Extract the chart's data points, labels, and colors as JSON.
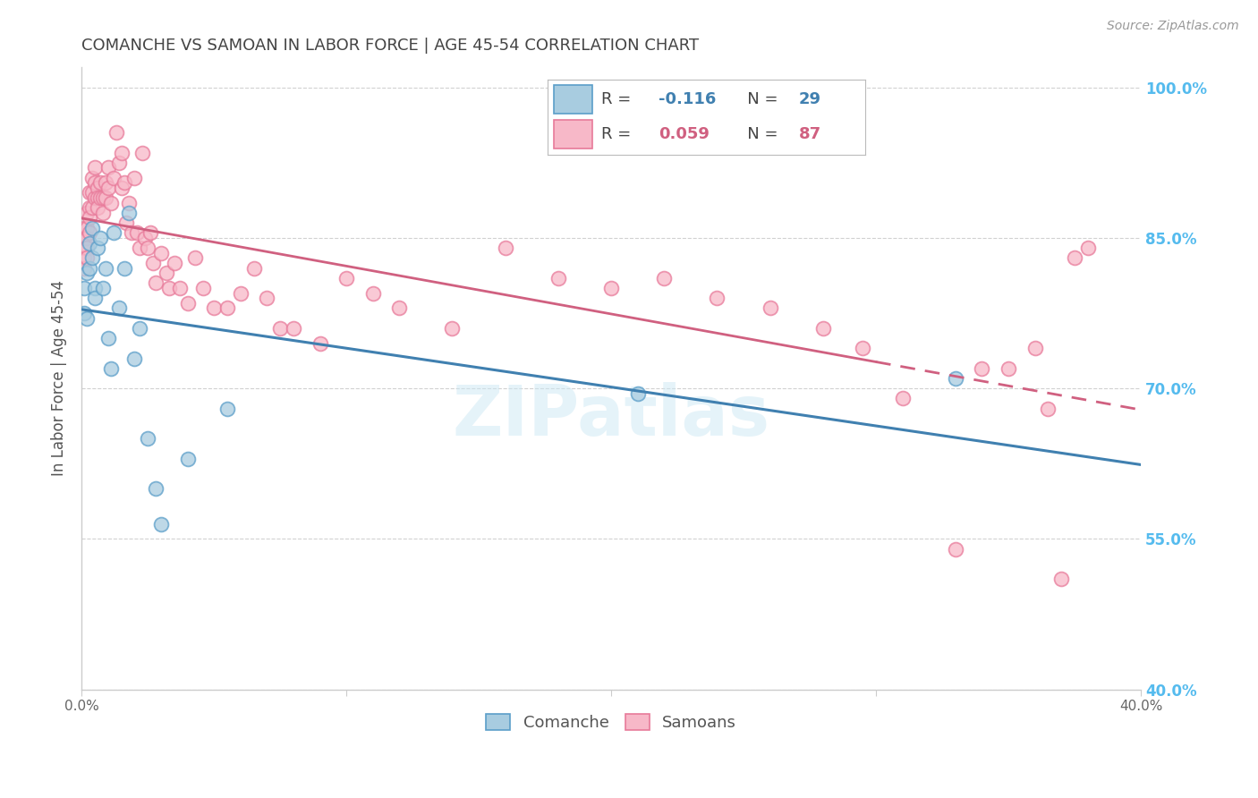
{
  "title": "COMANCHE VS SAMOAN IN LABOR FORCE | AGE 45-54 CORRELATION CHART",
  "source": "Source: ZipAtlas.com",
  "ylabel": "In Labor Force | Age 45-54",
  "watermark": "ZIPatlas",
  "legend_blue_r": "-0.116",
  "legend_blue_n": "29",
  "legend_pink_r": "0.059",
  "legend_pink_n": "87",
  "xmin": 0.0,
  "xmax": 0.4,
  "ymin": 0.4,
  "ymax": 1.02,
  "yticks": [
    0.4,
    0.55,
    0.7,
    0.85,
    1.0
  ],
  "ytick_labels": [
    "40.0%",
    "55.0%",
    "70.0%",
    "85.0%",
    "100.0%"
  ],
  "xticks": [
    0.0,
    0.1,
    0.2,
    0.3,
    0.4
  ],
  "xtick_labels": [
    "0.0%",
    "",
    "",
    "",
    "40.0%"
  ],
  "blue_scatter_color": "#a8cce0",
  "blue_edge_color": "#5b9ec9",
  "pink_scatter_color": "#f7b8c8",
  "pink_edge_color": "#e87a9a",
  "blue_line_color": "#4080b0",
  "pink_line_color": "#d06080",
  "grid_color": "#cccccc",
  "title_color": "#444444",
  "right_label_color": "#55bbee",
  "background_color": "#ffffff",
  "comanche_x": [
    0.001,
    0.001,
    0.002,
    0.002,
    0.003,
    0.003,
    0.004,
    0.004,
    0.005,
    0.005,
    0.006,
    0.007,
    0.008,
    0.009,
    0.01,
    0.011,
    0.012,
    0.014,
    0.016,
    0.018,
    0.02,
    0.022,
    0.025,
    0.028,
    0.03,
    0.04,
    0.055,
    0.21,
    0.33
  ],
  "comanche_y": [
    0.8,
    0.775,
    0.815,
    0.77,
    0.845,
    0.82,
    0.86,
    0.83,
    0.8,
    0.79,
    0.84,
    0.85,
    0.8,
    0.82,
    0.75,
    0.72,
    0.855,
    0.78,
    0.82,
    0.875,
    0.73,
    0.76,
    0.65,
    0.6,
    0.565,
    0.63,
    0.68,
    0.695,
    0.71
  ],
  "samoan_x": [
    0.001,
    0.001,
    0.001,
    0.001,
    0.001,
    0.002,
    0.002,
    0.002,
    0.002,
    0.002,
    0.003,
    0.003,
    0.003,
    0.003,
    0.004,
    0.004,
    0.004,
    0.005,
    0.005,
    0.005,
    0.006,
    0.006,
    0.006,
    0.007,
    0.007,
    0.008,
    0.008,
    0.009,
    0.009,
    0.01,
    0.01,
    0.011,
    0.012,
    0.013,
    0.014,
    0.015,
    0.015,
    0.016,
    0.017,
    0.018,
    0.019,
    0.02,
    0.021,
    0.022,
    0.023,
    0.024,
    0.025,
    0.026,
    0.027,
    0.028,
    0.03,
    0.032,
    0.033,
    0.035,
    0.037,
    0.04,
    0.043,
    0.046,
    0.05,
    0.055,
    0.06,
    0.065,
    0.07,
    0.075,
    0.08,
    0.09,
    0.1,
    0.11,
    0.12,
    0.14,
    0.16,
    0.18,
    0.2,
    0.22,
    0.24,
    0.26,
    0.28,
    0.295,
    0.31,
    0.33,
    0.34,
    0.35,
    0.36,
    0.365,
    0.37,
    0.375,
    0.38
  ],
  "samoan_y": [
    0.86,
    0.85,
    0.84,
    0.83,
    0.82,
    0.875,
    0.86,
    0.85,
    0.84,
    0.83,
    0.895,
    0.88,
    0.87,
    0.855,
    0.91,
    0.895,
    0.88,
    0.92,
    0.905,
    0.89,
    0.9,
    0.89,
    0.88,
    0.905,
    0.89,
    0.89,
    0.875,
    0.905,
    0.89,
    0.92,
    0.9,
    0.885,
    0.91,
    0.955,
    0.925,
    0.935,
    0.9,
    0.905,
    0.865,
    0.885,
    0.855,
    0.91,
    0.855,
    0.84,
    0.935,
    0.85,
    0.84,
    0.855,
    0.825,
    0.805,
    0.835,
    0.815,
    0.8,
    0.825,
    0.8,
    0.785,
    0.83,
    0.8,
    0.78,
    0.78,
    0.795,
    0.82,
    0.79,
    0.76,
    0.76,
    0.745,
    0.81,
    0.795,
    0.78,
    0.76,
    0.84,
    0.81,
    0.8,
    0.81,
    0.79,
    0.78,
    0.76,
    0.74,
    0.69,
    0.54,
    0.72,
    0.72,
    0.74,
    0.68,
    0.51,
    0.83,
    0.84
  ]
}
